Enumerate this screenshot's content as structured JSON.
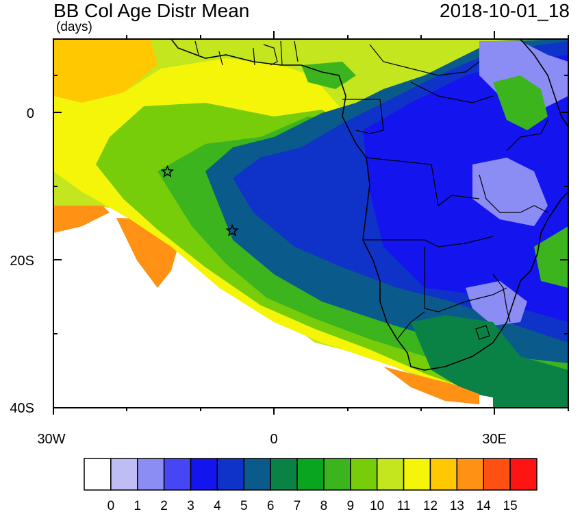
{
  "header": {
    "title": "BB Col Age Distr Mean",
    "units": "(days)",
    "timestamp": "2018-10-01_18"
  },
  "axes": {
    "y_ticks": [
      {
        "label": "0",
        "lat": 0
      },
      {
        "label": "20S",
        "lat": -20
      },
      {
        "label": "40S",
        "lat": -40
      }
    ],
    "x_ticks": [
      {
        "label": "30W",
        "lon": -30
      },
      {
        "label": "0",
        "lon": 0
      },
      {
        "label": "30E",
        "lon": 30
      }
    ],
    "lon_range": [
      -30,
      40
    ],
    "lat_range": [
      -40,
      10
    ]
  },
  "markers": [
    {
      "name": "star-marker",
      "lon": -14.5,
      "lat": -8
    },
    {
      "name": "star-marker",
      "lon": -5.7,
      "lat": -16
    }
  ],
  "colorbar": {
    "labels": [
      "0",
      "1",
      "2",
      "3",
      "4",
      "5",
      "6",
      "7",
      "8",
      "9",
      "10",
      "11",
      "12",
      "13",
      "14",
      "15"
    ],
    "colors": [
      "#ffffff",
      "#bebef5",
      "#8c8cf5",
      "#4646f5",
      "#1414ee",
      "#0f32c8",
      "#0a5a8c",
      "#0a8246",
      "#0aa51e",
      "#3cb41e",
      "#78cd0a",
      "#c3e61e",
      "#f5f50a",
      "#ffc800",
      "#ff9114",
      "#ff5014",
      "#ff1414"
    ]
  }
}
